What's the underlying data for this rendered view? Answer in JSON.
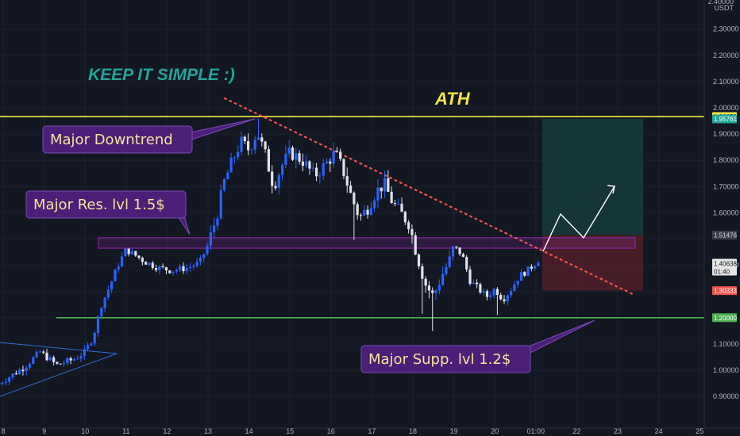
{
  "chart_data": {
    "type": "candlestick",
    "title": "",
    "quote_unit": "USDT",
    "top_tick_label": "2.40000",
    "xlabel": "",
    "ylabel": "",
    "ylim": [
      0.84,
      2.43
    ],
    "x_tick_labels": [
      "8",
      "9",
      "10",
      "11",
      "12",
      "13",
      "14",
      "15",
      "16",
      "17",
      "18",
      "19",
      "20",
      "01:00",
      "22",
      "23",
      "24",
      "25"
    ],
    "y_ticks": [
      2.3,
      2.2,
      2.1,
      2.0,
      1.9,
      1.8,
      1.7,
      1.6,
      1.5,
      1.4,
      1.3,
      1.2,
      1.1,
      1.0,
      0.9
    ],
    "y_tick_labels": [
      "2.30000",
      "2.20000",
      "2.10000",
      "2.00000",
      "1.90000",
      "1.80000",
      "1.70000",
      "1.60000",
      "1.50000",
      "1.40000",
      "1.30000",
      "1.20000",
      "1.10000",
      "1.00000",
      "0.90000"
    ],
    "price_path": [
      [
        7.9,
        0.95
      ],
      [
        8.5,
        1.01
      ],
      [
        8.9,
        1.07
      ],
      [
        9.3,
        1.02
      ],
      [
        9.7,
        1.04
      ],
      [
        10.0,
        1.07
      ],
      [
        10.2,
        1.13
      ],
      [
        10.4,
        1.25
      ],
      [
        10.6,
        1.32
      ],
      [
        10.8,
        1.4
      ],
      [
        11.0,
        1.46
      ],
      [
        11.2,
        1.44
      ],
      [
        11.5,
        1.41
      ],
      [
        11.8,
        1.39
      ],
      [
        12.1,
        1.38
      ],
      [
        12.5,
        1.39
      ],
      [
        12.8,
        1.41
      ],
      [
        13.0,
        1.48
      ],
      [
        13.2,
        1.58
      ],
      [
        13.4,
        1.72
      ],
      [
        13.6,
        1.8
      ],
      [
        13.8,
        1.87
      ],
      [
        14.0,
        1.84
      ],
      [
        14.2,
        1.91
      ],
      [
        14.4,
        1.82
      ],
      [
        14.6,
        1.7
      ],
      [
        14.8,
        1.78
      ],
      [
        15.0,
        1.83
      ],
      [
        15.3,
        1.8
      ],
      [
        15.6,
        1.74
      ],
      [
        15.9,
        1.79
      ],
      [
        16.1,
        1.83
      ],
      [
        16.3,
        1.76
      ],
      [
        16.5,
        1.66
      ],
      [
        16.7,
        1.58
      ],
      [
        16.9,
        1.62
      ],
      [
        17.1,
        1.68
      ],
      [
        17.3,
        1.71
      ],
      [
        17.5,
        1.64
      ],
      [
        17.7,
        1.6
      ],
      [
        17.9,
        1.56
      ],
      [
        18.1,
        1.44
      ],
      [
        18.3,
        1.33
      ],
      [
        18.5,
        1.28
      ],
      [
        18.7,
        1.36
      ],
      [
        18.9,
        1.42
      ],
      [
        19.0,
        1.47
      ],
      [
        19.2,
        1.44
      ],
      [
        19.4,
        1.34
      ],
      [
        19.6,
        1.31
      ],
      [
        19.8,
        1.28
      ],
      [
        20.0,
        1.31
      ],
      [
        20.2,
        1.27
      ],
      [
        20.4,
        1.31
      ],
      [
        20.6,
        1.36
      ],
      [
        20.8,
        1.38
      ],
      [
        21.0,
        1.41
      ],
      [
        21.12,
        1.43
      ]
    ],
    "annotations": [
      {
        "text": "KEEP IT SIMPLE :)",
        "color": "#22a59a"
      },
      {
        "text": "ATH",
        "color": "#f5e642"
      },
      {
        "text": "Major Downtrend",
        "kind": "callout"
      },
      {
        "text": "Major Res. lvl 1.5$",
        "kind": "callout"
      },
      {
        "text": "Major Supp. lvl 1.2$",
        "kind": "callout"
      }
    ],
    "levels": [
      {
        "name": "ATH",
        "price": 1.96659,
        "label": "1.96659",
        "color": "#f5e642"
      },
      {
        "name": "support",
        "price": 1.2,
        "label": "1.20000",
        "color": "#4caf50"
      }
    ],
    "resistance_zone": {
      "from": 1.465,
      "to": 1.505,
      "color": "#9c27b0"
    },
    "downtrend_line": {
      "from": [
        14.3,
        2.02
      ],
      "to": [
        23.5,
        1.3
      ],
      "color": "#ef5350"
    },
    "position": {
      "entry": 1.51476,
      "target": 1.95761,
      "stop": 1.30333,
      "entry_label": "1.51476",
      "target_label": "1.95761",
      "stop_label": "1.30333",
      "start_x": 21.12,
      "end_x": 23.6
    },
    "projection": [
      [
        21.12,
        1.43
      ],
      [
        21.6,
        1.58
      ],
      [
        22.3,
        1.47
      ],
      [
        23.05,
        1.72
      ]
    ],
    "current_price": {
      "value": 1.40638,
      "label": "1.40638",
      "countdown": "01:40"
    },
    "background": "#131722",
    "up_color": "#2962ff",
    "down_color": "#e0e3eb"
  }
}
